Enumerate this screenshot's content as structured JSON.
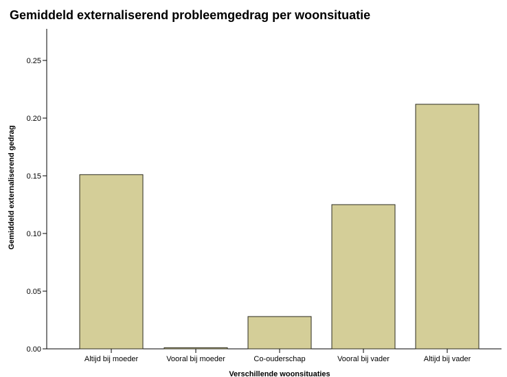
{
  "chart_data": {
    "type": "bar",
    "title": "Gemiddeld externaliserend probleemgedrag per woonsituatie",
    "xlabel": "Verschillende woonsituaties",
    "ylabel": "Gemiddeld externaliserend gedrag",
    "categories": [
      "Altijd bij moeder",
      "Vooral bij moeder",
      "Co-ouderschap",
      "Vooral bij vader",
      "Altijd bij vader"
    ],
    "values": [
      0.151,
      0.001,
      0.028,
      0.125,
      0.212
    ],
    "ylim": [
      0,
      0.25
    ],
    "yticks": [
      "0.00",
      "0.05",
      "0.10",
      "0.15",
      "0.20",
      "0.25"
    ],
    "grid": false,
    "colors": {
      "bar_fill": "#d4ce98",
      "bar_stroke": "#2b2b1f",
      "axis": "#000000"
    }
  }
}
